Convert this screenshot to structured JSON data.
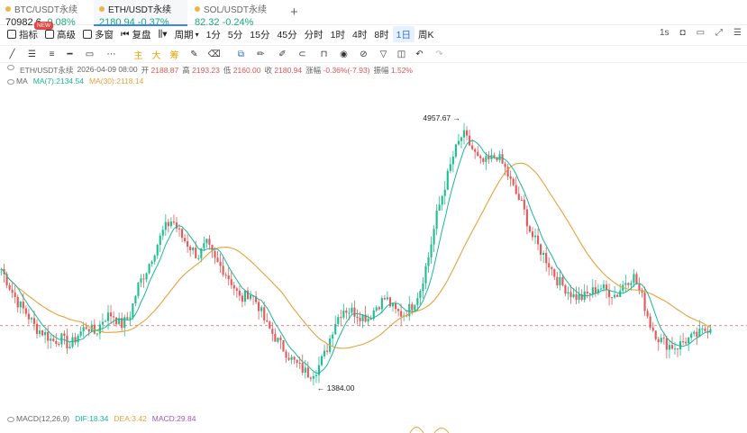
{
  "tabs": [
    {
      "pair": "BTC/USDT永续",
      "price": "70982.6",
      "change": "-0.08%",
      "active": false
    },
    {
      "pair": "ETH/USDT永续",
      "price": "2180.94",
      "change": "-0.37%",
      "active": true
    },
    {
      "pair": "SOL/USDT永续",
      "price": "82.32",
      "change": "-0.24%",
      "active": false
    }
  ],
  "new_badge": "NEW",
  "toolbar": {
    "indicators": "指标",
    "advanced": "高级",
    "multi_window": "多窗",
    "replay": "复盘",
    "period": "周期",
    "intervals": [
      "1分",
      "5分",
      "15分",
      "45分",
      "分时",
      "1时",
      "4时",
      "8时",
      "1日",
      "周K"
    ],
    "selected_interval": "1日",
    "seconds": "1s"
  },
  "drawing_tools": {
    "main": "主",
    "big": "大",
    "chou": "筹"
  },
  "ohlc": {
    "label": "ETH/USDT永续",
    "date": "2026-04-09 08:00",
    "open_label": "开",
    "open": "2188.87",
    "high_label": "高",
    "high": "2193.23",
    "low_label": "低",
    "low": "2160.00",
    "close_label": "收",
    "close": "2180.94",
    "change_label": "涨幅",
    "change": "-0.36%(-7.93)",
    "amp_label": "振幅",
    "amp": "1.52%"
  },
  "ma": {
    "label": "MA",
    "ma7": "MA(7):2134.54",
    "ma30": "MA(30):2118.14"
  },
  "macd": {
    "label": "MACD(12,26,9)",
    "dif": "DIF:18.34",
    "dea": "DEA:3.42",
    "macd": "MACD:29.84"
  },
  "chart_data": {
    "type": "candlestick",
    "annotations": {
      "high": "4957.67",
      "low": "1384.00",
      "current_price": 2180.94
    },
    "ylim": [
      1300,
      5300
    ],
    "closes": [
      2950,
      2700,
      2480,
      2340,
      2150,
      2080,
      1970,
      2010,
      1900,
      2060,
      2180,
      2070,
      2290,
      2340,
      2180,
      2310,
      2720,
      2940,
      3220,
      3480,
      3620,
      3400,
      3260,
      3120,
      3290,
      3060,
      2940,
      2760,
      2520,
      2640,
      2480,
      2190,
      2030,
      1870,
      1720,
      1610,
      1520,
      1600,
      1830,
      2220,
      2410,
      2380,
      2320,
      2290,
      2460,
      2560,
      2380,
      2330,
      2440,
      2670,
      3120,
      3700,
      4120,
      4520,
      4780,
      4600,
      4380,
      4410,
      4490,
      4300,
      4020,
      3800,
      3420,
      3220,
      3040,
      2810,
      2690,
      2580,
      2560,
      2630,
      2710,
      2640,
      2590,
      2780,
      2850,
      2560,
      2180,
      2000,
      1920,
      1890,
      1980,
      2020,
      2090,
      2180
    ]
  }
}
